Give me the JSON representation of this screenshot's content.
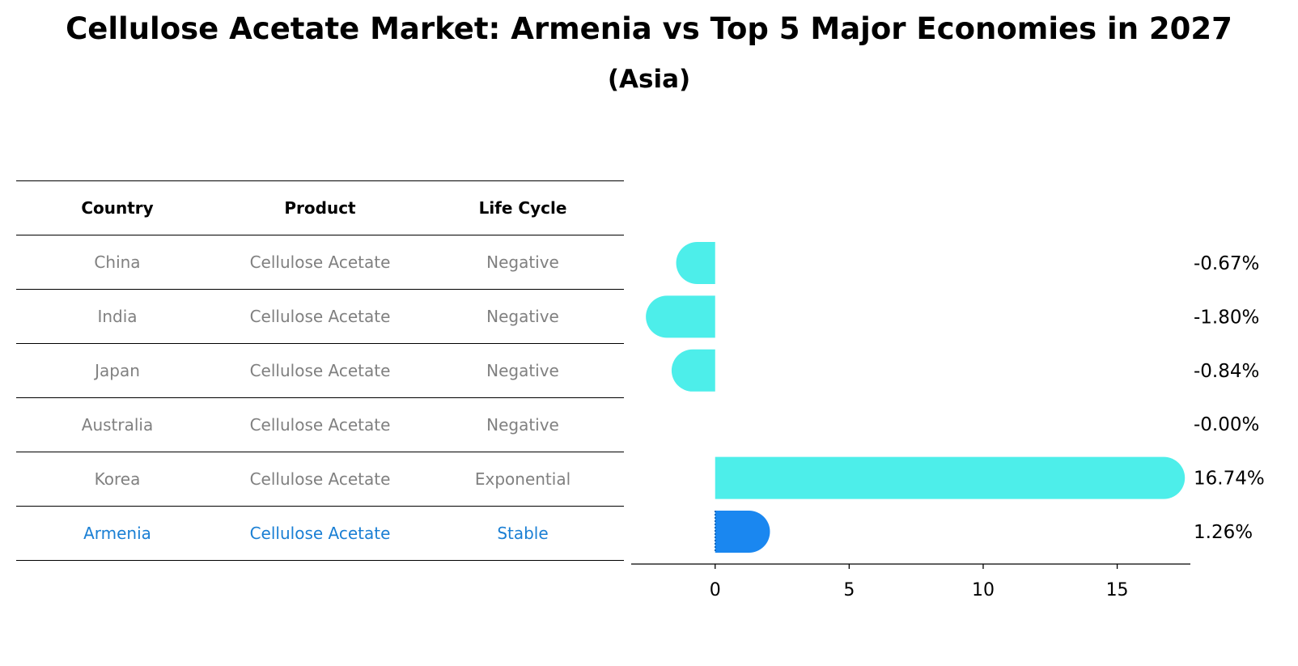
{
  "title": "Cellulose Acetate Market: Armenia vs Top 5 Major Economies in 2027",
  "subtitle": "(Asia)",
  "table": {
    "headers": [
      "Country",
      "Product",
      "Life Cycle"
    ],
    "rows": [
      {
        "country": "China",
        "product": "Cellulose Acetate",
        "life_cycle": "Negative"
      },
      {
        "country": "India",
        "product": "Cellulose Acetate",
        "life_cycle": "Negative"
      },
      {
        "country": "Japan",
        "product": "Cellulose Acetate",
        "life_cycle": "Negative"
      },
      {
        "country": "Australia",
        "product": "Cellulose Acetate",
        "life_cycle": "Negative"
      },
      {
        "country": "Korea",
        "product": "Cellulose Acetate",
        "life_cycle": "Exponential"
      },
      {
        "country": "Armenia",
        "product": "Cellulose Acetate",
        "life_cycle": "Stable"
      }
    ]
  },
  "colors": {
    "bar": "#4deeea",
    "highlight_bar": "#1a87f0",
    "highlight_text": "#1a7fd4",
    "muted_text": "#808080"
  },
  "chart_data": {
    "type": "bar",
    "orientation": "horizontal",
    "categories": [
      "China",
      "India",
      "Japan",
      "Australia",
      "Korea",
      "Armenia"
    ],
    "values": [
      -0.67,
      -1.8,
      -0.84,
      -0.0,
      16.74,
      1.26
    ],
    "value_labels": [
      "-0.67%",
      "-1.80%",
      "-0.84%",
      "-0.00%",
      "16.74%",
      "1.26%"
    ],
    "highlight": "Armenia",
    "xlim": [
      -2.8,
      17.7
    ],
    "xticks": [
      0,
      5,
      10,
      15
    ],
    "xlabel": "",
    "ylabel": "",
    "grid": false
  }
}
